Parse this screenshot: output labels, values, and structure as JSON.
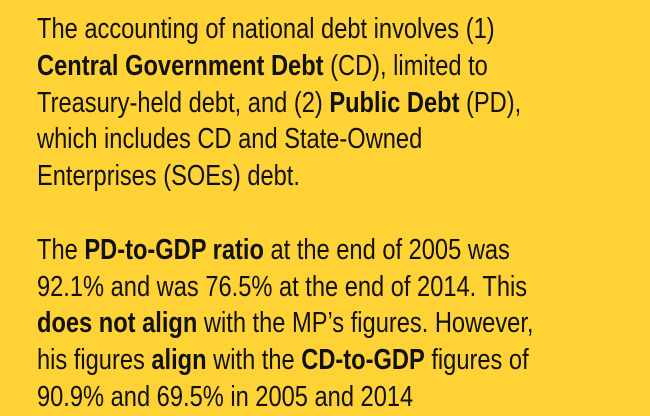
{
  "background_color": "#FFD235",
  "paragraphs": [
    {
      "lines": [
        [
          {
            "t": "The accounting of national debt involves (1)",
            "b": false
          }
        ],
        [
          {
            "t": "Central Government Debt",
            "b": true
          },
          {
            "t": " (CD), limited to",
            "b": false
          }
        ],
        [
          {
            "t": "Treasury-held debt, and (2) ",
            "b": false
          },
          {
            "t": "Public Debt",
            "b": true
          },
          {
            "t": " (PD),",
            "b": false
          }
        ],
        [
          {
            "t": "which includes CD and State-Owned",
            "b": false
          }
        ],
        [
          {
            "t": "Enterprises (SOEs) debt.",
            "b": false
          }
        ]
      ]
    },
    {
      "lines": [
        [
          {
            "t": "The ",
            "b": false
          },
          {
            "t": "PD-to-GDP ratio",
            "b": true
          },
          {
            "t": " at the end of 2005 was",
            "b": false
          }
        ],
        [
          {
            "t": "92.1% and was 76.5% at the end of 2014. This",
            "b": false
          }
        ],
        [
          {
            "t": "does not align",
            "b": true
          },
          {
            "t": " with the MP’s figures. However,",
            "b": false
          }
        ],
        [
          {
            "t": "his figures ",
            "b": false
          },
          {
            "t": "align",
            "b": true
          },
          {
            "t": " with the ",
            "b": false
          },
          {
            "t": "CD-to-GDP",
            "b": true
          },
          {
            "t": " figures of",
            "b": false
          }
        ],
        [
          {
            "t": "90.9% and 69.5% in 2005 and 2014",
            "b": false
          }
        ]
      ]
    }
  ]
}
